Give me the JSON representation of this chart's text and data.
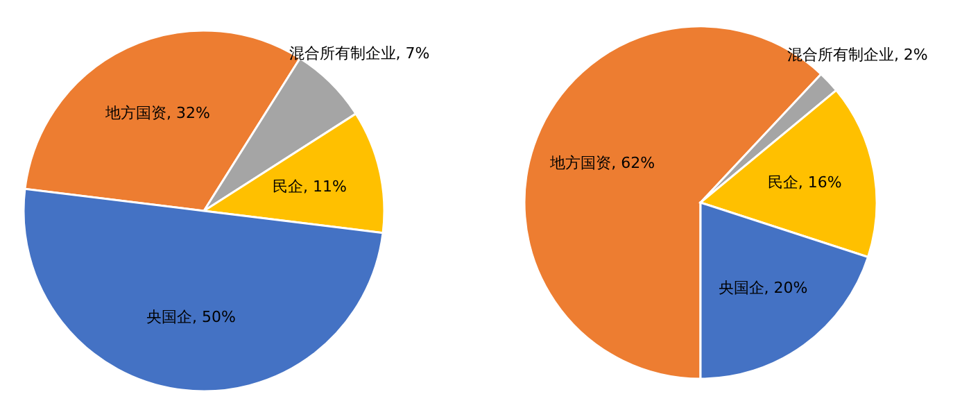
{
  "chart_data": [
    {
      "type": "pie",
      "categories": [
        "地方国资",
        "混合所有制企业",
        "民企",
        "央国企"
      ],
      "values": [
        32,
        7,
        11,
        50
      ],
      "value_labels": [
        "32%",
        "7%",
        "11%",
        "50%"
      ],
      "colors": [
        "#ed7d31",
        "#a5a5a5",
        "#ffc000",
        "#4472c4"
      ]
    },
    {
      "type": "pie",
      "categories": [
        "地方国资",
        "混合所有制企业",
        "民企",
        "央国企"
      ],
      "values": [
        62,
        2,
        16,
        20
      ],
      "value_labels": [
        "62%",
        "2%",
        "16%",
        "20%"
      ],
      "colors": [
        "#ed7d31",
        "#a5a5a5",
        "#ffc000",
        "#4472c4"
      ]
    }
  ]
}
